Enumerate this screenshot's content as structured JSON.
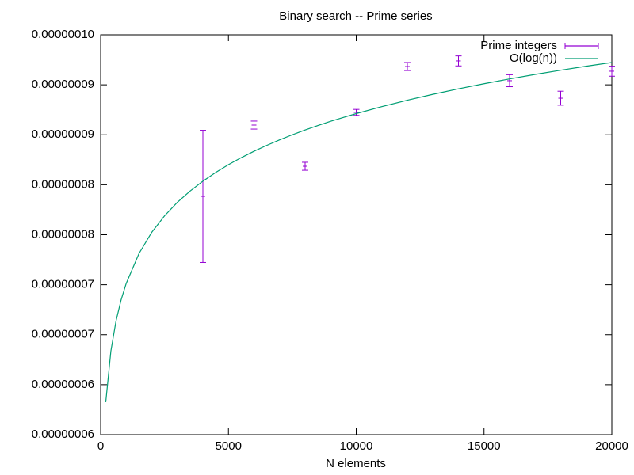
{
  "chart_data": {
    "type": "scatter",
    "title": "Binary search -- Prime series",
    "xlabel": "N elements",
    "xlim": [
      0,
      20000
    ],
    "xticks": [
      0,
      5000,
      10000,
      15000,
      20000
    ],
    "ylim": [
      5.5e-08,
      9.5e-08
    ],
    "yticks": [
      {
        "value": 5.5e-08,
        "label": "0.00000006"
      },
      {
        "value": 6e-08,
        "label": "0.00000006"
      },
      {
        "value": 6.5e-08,
        "label": "0.00000007"
      },
      {
        "value": 7e-08,
        "label": "0.00000007"
      },
      {
        "value": 7.5e-08,
        "label": "0.00000008"
      },
      {
        "value": 8e-08,
        "label": "0.00000008"
      },
      {
        "value": 8.5e-08,
        "label": "0.00000009"
      },
      {
        "value": 9e-08,
        "label": "0.00000009"
      },
      {
        "value": 9.5e-08,
        "label": "0.00000010"
      }
    ],
    "legend": "upper right",
    "series": [
      {
        "name": "Prime integers",
        "type": "errorbar",
        "color": "#9400d3",
        "x": [
          4000,
          6000,
          8000,
          10000,
          12000,
          14000,
          16000,
          18000,
          20000
        ],
        "values": [
          7.884e-08,
          8.597e-08,
          8.185e-08,
          8.724e-08,
          9.183e-08,
          9.239e-08,
          9.041e-08,
          8.866e-08,
          9.136e-08
        ],
        "errors": [
          6.61e-09,
          4e-10,
          4e-10,
          3e-10,
          4e-10,
          5e-10,
          6e-10,
          7e-10,
          5e-10
        ]
      },
      {
        "name": "O(log(n))",
        "type": "line",
        "color": "#009e73",
        "x": [
          200,
          400,
          600,
          800,
          1000,
          1500,
          2000,
          2500,
          3000,
          3500,
          4000,
          4500,
          5000,
          5500,
          6000,
          6500,
          7000,
          7500,
          8000,
          8500,
          9000,
          9500,
          10000,
          11000,
          12000,
          13000,
          14000,
          15000,
          16000,
          17000,
          18000,
          19000,
          20000
        ],
        "values": [
          5.825e-08,
          6.336e-08,
          6.636e-08,
          6.848e-08,
          7.013e-08,
          7.312e-08,
          7.525e-08,
          7.689e-08,
          7.824e-08,
          7.937e-08,
          8.036e-08,
          8.123e-08,
          8.201e-08,
          8.271e-08,
          8.335e-08,
          8.394e-08,
          8.449e-08,
          8.5e-08,
          8.548e-08,
          8.593e-08,
          8.635e-08,
          8.674e-08,
          8.712e-08,
          8.782e-08,
          8.846e-08,
          8.905e-08,
          8.96e-08,
          9.011e-08,
          9.059e-08,
          9.104e-08,
          9.146e-08,
          9.186e-08,
          9.223e-08
        ]
      }
    ]
  }
}
